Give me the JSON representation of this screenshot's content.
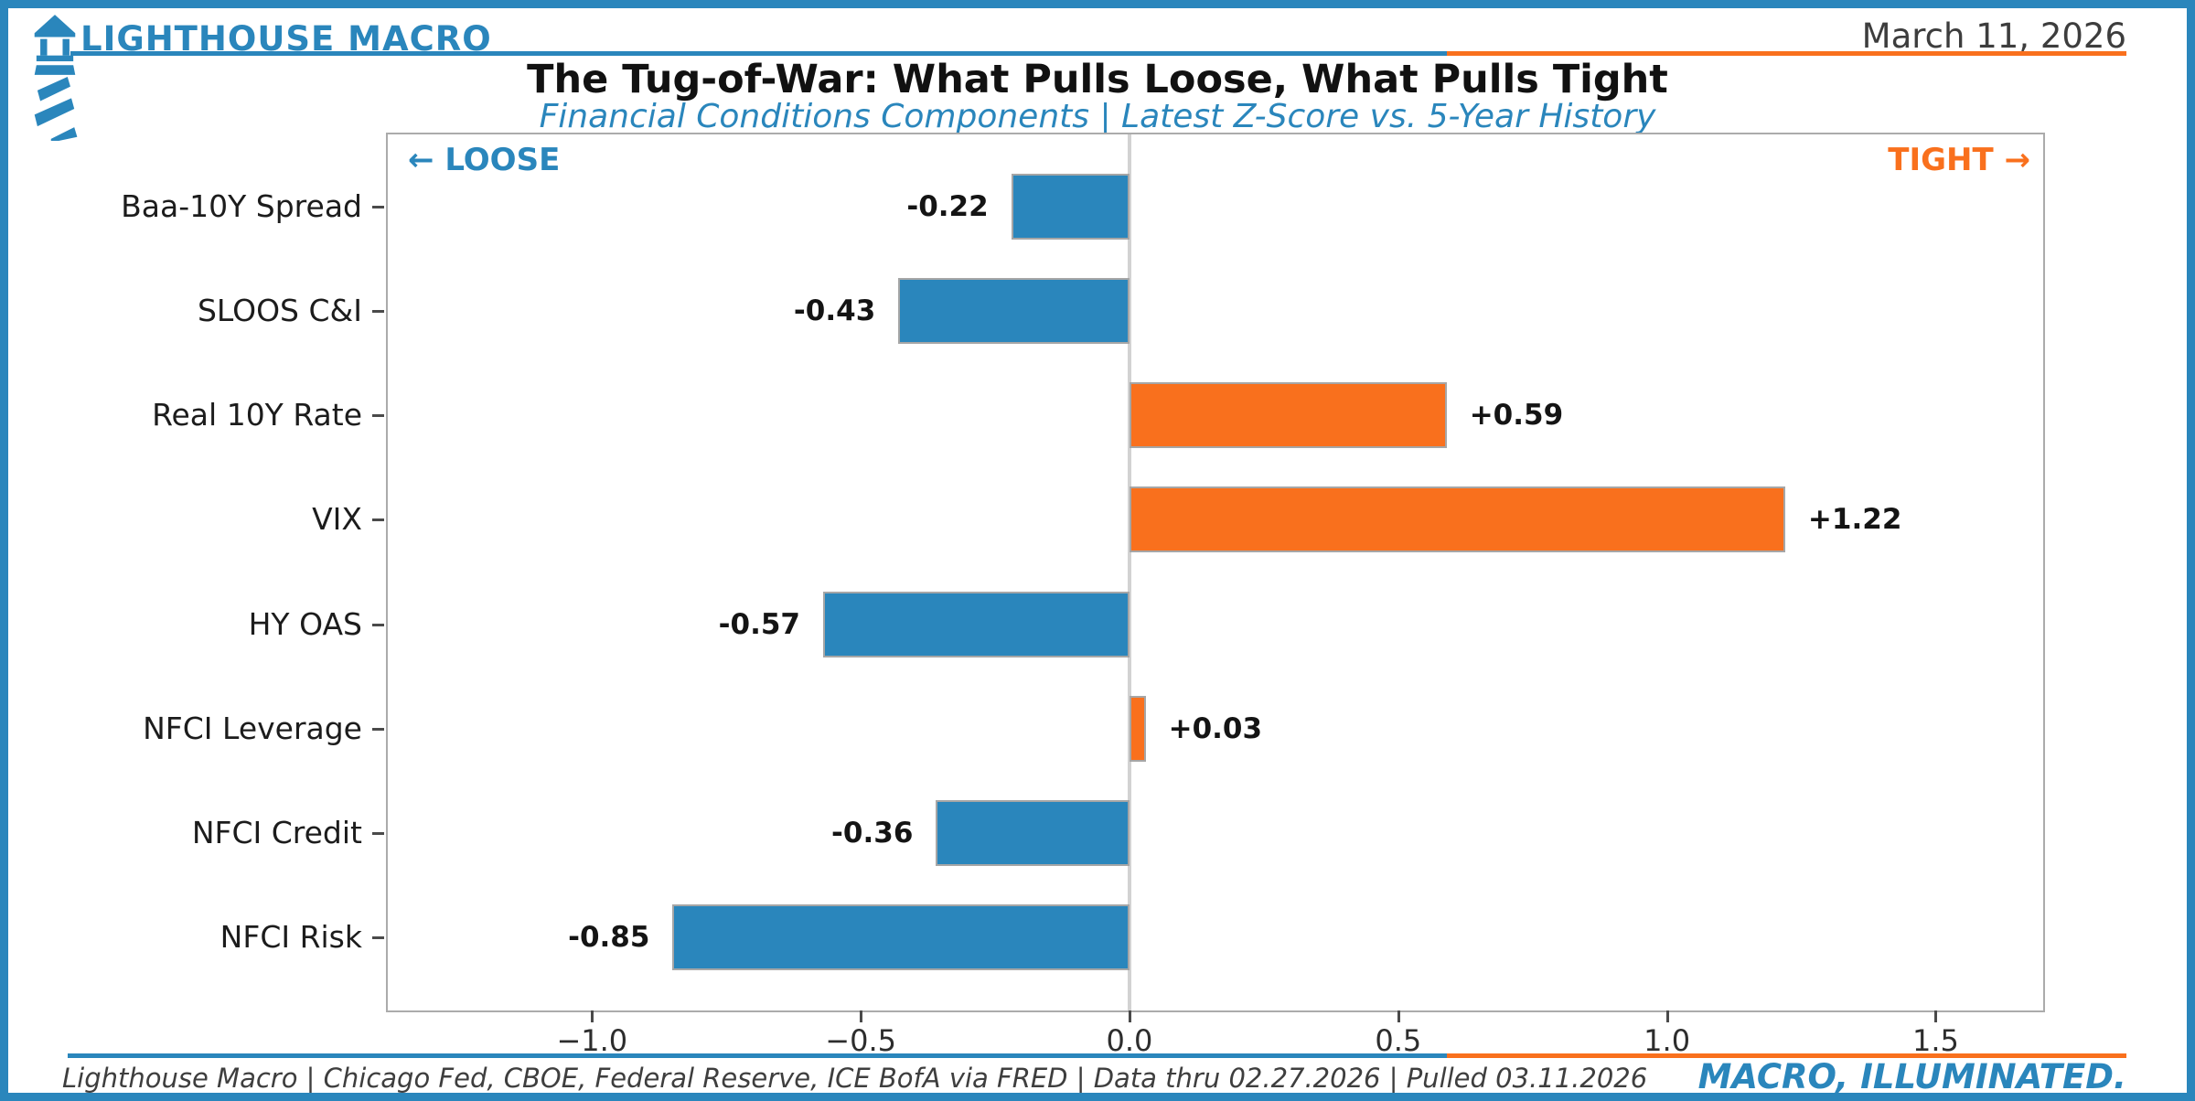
{
  "header": {
    "brand": "LIGHTHOUSE MACRO",
    "date": "March 11, 2026"
  },
  "annotations": {
    "loose": "← LOOSE",
    "tight": "TIGHT →"
  },
  "footer": {
    "source": "Lighthouse Macro | Chicago Fed, CBOE, Federal Reserve, ICE BofA via FRED | Data thru 02.27.2026 | Pulled 03.11.2026",
    "tagline": "MACRO, ILLUMINATED."
  },
  "colors": {
    "blue": "#2A86BC",
    "orange": "#F9701D",
    "spine_gray": "#ababab",
    "zero_line_gray": "#d2d2d2",
    "title_black": "#111111",
    "date_gray": "#3d3d3d",
    "footer_gray": "#3e3e3e"
  },
  "chart_data": {
    "type": "bar",
    "orientation": "horizontal",
    "title": "The Tug-of-War: What Pulls Loose, What Pulls Tight",
    "subtitle": "Financial Conditions Components | Latest Z-Score vs. 5-Year History",
    "categories": [
      "Baa-10Y Spread",
      "SLOOS C&I",
      "Real 10Y Rate",
      "VIX",
      "HY OAS",
      "NFCI Leverage",
      "NFCI Credit",
      "NFCI Risk"
    ],
    "values": [
      -0.22,
      -0.43,
      0.59,
      1.22,
      -0.57,
      0.03,
      -0.36,
      -0.85
    ],
    "value_labels": [
      "-0.22",
      "-0.43",
      "+0.59",
      "+1.22",
      "-0.57",
      "+0.03",
      "-0.36",
      "-0.85"
    ],
    "x_ticks": [
      -1.0,
      -0.5,
      0.0,
      0.5,
      1.0,
      1.5
    ],
    "x_tick_labels": [
      "−1.0",
      "−0.5",
      "0.0",
      "0.5",
      "1.0",
      "1.5"
    ],
    "xlim": [
      -1.38,
      1.7
    ],
    "xlabel": "",
    "ylabel": "",
    "grid": false,
    "zero_line": true,
    "legend": "none",
    "negative_color": "#2A86BC",
    "positive_color": "#F9701D"
  }
}
